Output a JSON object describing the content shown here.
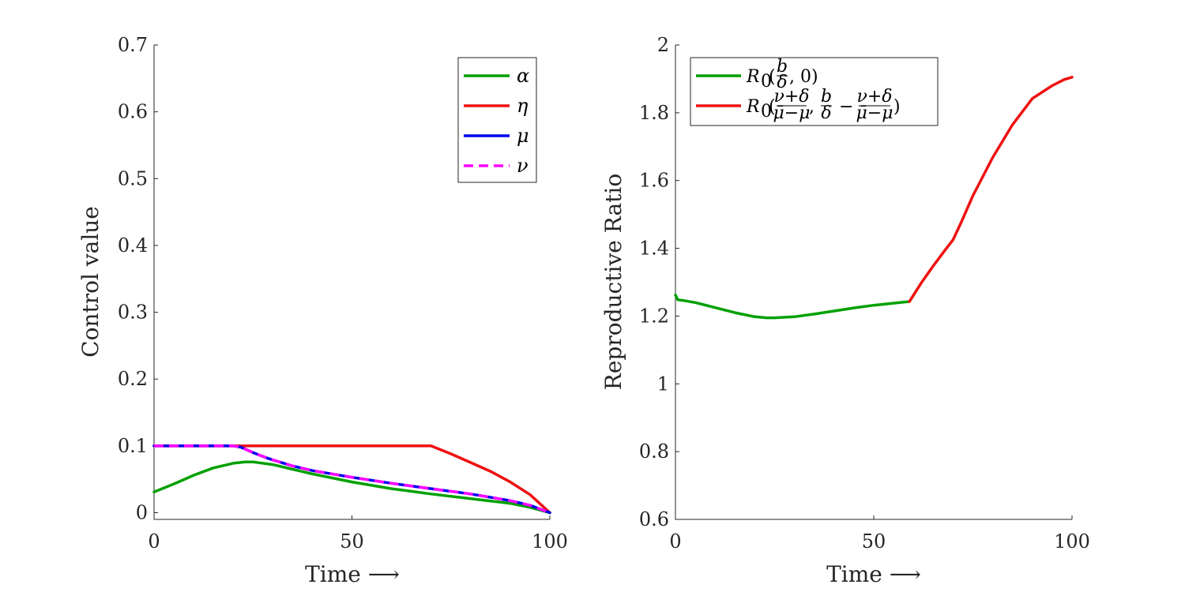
{
  "chart_data": [
    {
      "type": "line",
      "title": "",
      "xlabel": "Time ⟶",
      "ylabel": "Control value",
      "xlim": [
        0,
        100
      ],
      "ylim": [
        -0.01,
        0.7
      ],
      "xticks": [
        0,
        50,
        100
      ],
      "xtick_labels": [
        "0",
        "50",
        "100"
      ],
      "yticks": [
        0,
        0.1,
        0.2,
        0.3,
        0.4,
        0.5,
        0.6,
        0.7
      ],
      "ytick_labels": [
        "0",
        "0.1",
        "0.2",
        "0.3",
        "0.4",
        "0.5",
        "0.6",
        "0.7"
      ],
      "legend_position": "top-right",
      "series": [
        {
          "name": "α",
          "color": "#00a000",
          "dash": "solid",
          "x": [
            0,
            5,
            10,
            15,
            20,
            23,
            25,
            30,
            35,
            40,
            50,
            60,
            70,
            80,
            90,
            95,
            100
          ],
          "y": [
            0.031,
            0.043,
            0.056,
            0.067,
            0.074,
            0.076,
            0.076,
            0.072,
            0.065,
            0.058,
            0.046,
            0.036,
            0.028,
            0.021,
            0.014,
            0.008,
            0.0
          ]
        },
        {
          "name": "η",
          "color": "#ee1111",
          "dash": "solid",
          "x": [
            0,
            20,
            40,
            60,
            70,
            75,
            80,
            85,
            90,
            95,
            100
          ],
          "y": [
            0.1,
            0.1,
            0.1,
            0.1,
            0.1,
            0.088,
            0.075,
            0.062,
            0.046,
            0.027,
            0.0
          ]
        },
        {
          "name": "μ",
          "color": "#0000ee",
          "dash": "solid",
          "x": [
            0,
            10,
            20,
            22,
            25,
            28,
            30,
            35,
            40,
            50,
            60,
            70,
            80,
            90,
            95,
            100
          ],
          "y": [
            0.1,
            0.1,
            0.1,
            0.098,
            0.09,
            0.083,
            0.079,
            0.07,
            0.063,
            0.053,
            0.044,
            0.036,
            0.028,
            0.018,
            0.011,
            0.0
          ]
        },
        {
          "name": "ν",
          "color": "#ff00ff",
          "dash": "dashed",
          "x": [
            0,
            10,
            20,
            22,
            25,
            28,
            30,
            35,
            40,
            50,
            60,
            70,
            80,
            90,
            95,
            100
          ],
          "y": [
            0.1,
            0.1,
            0.1,
            0.098,
            0.09,
            0.083,
            0.079,
            0.07,
            0.063,
            0.053,
            0.044,
            0.036,
            0.028,
            0.018,
            0.011,
            0.0
          ]
        }
      ]
    },
    {
      "type": "line",
      "title": "",
      "xlabel": "Time ⟶",
      "ylabel": "Reproductive Ratio",
      "xlim": [
        0,
        100
      ],
      "ylim": [
        0.6,
        2
      ],
      "xticks": [
        0,
        50,
        100
      ],
      "xtick_labels": [
        "0",
        "50",
        "100"
      ],
      "yticks": [
        0.6,
        0.8,
        1,
        1.2,
        1.4,
        1.6,
        1.8,
        2
      ],
      "ytick_labels": [
        "0.6",
        "0.8",
        "1",
        "1.2",
        "1.4",
        "1.6",
        "1.8",
        "2"
      ],
      "legend_position": "top-left",
      "series": [
        {
          "name": "R₀(b/δ, 0)",
          "color": "#00a000",
          "dash": "solid",
          "x": [
            0,
            0.3,
            0.6,
            2,
            5,
            10,
            15,
            20,
            23,
            25,
            30,
            35,
            40,
            45,
            50,
            55,
            59
          ],
          "y": [
            1.262,
            1.255,
            1.248,
            1.246,
            1.24,
            1.225,
            1.21,
            1.198,
            1.195,
            1.195,
            1.198,
            1.206,
            1.215,
            1.224,
            1.232,
            1.238,
            1.243
          ]
        },
        {
          "name": "R₀((ν+δ)/(μ̄−μ), b/δ − (ν+δ)/(μ̄−μ))",
          "color": "#ee1111",
          "dash": "solid",
          "x": [
            59,
            62,
            65,
            68,
            70,
            72,
            75,
            80,
            85,
            90,
            95,
            98,
            100
          ],
          "y": [
            1.243,
            1.298,
            1.348,
            1.395,
            1.425,
            1.475,
            1.555,
            1.668,
            1.765,
            1.842,
            1.88,
            1.898,
            1.905
          ]
        }
      ]
    }
  ],
  "legend_left": {
    "labels": [
      "α",
      "η",
      "μ",
      "ν"
    ]
  },
  "legend_right": {
    "item1": {
      "main": "R",
      "sub": "0",
      "open": "(",
      "frac_num": "b",
      "frac_den": "δ",
      "rest": ", 0)"
    },
    "item2": {
      "main": "R",
      "sub": "0",
      "open": "(",
      "f1_num": "ν+δ",
      "f1_den": "μ̄−μ",
      "comma": ",",
      "f2_num": "b",
      "f2_den": "δ",
      "minus": "−",
      "f3_num": "ν+δ",
      "f3_den": "μ̄−μ",
      "close": ")"
    }
  }
}
